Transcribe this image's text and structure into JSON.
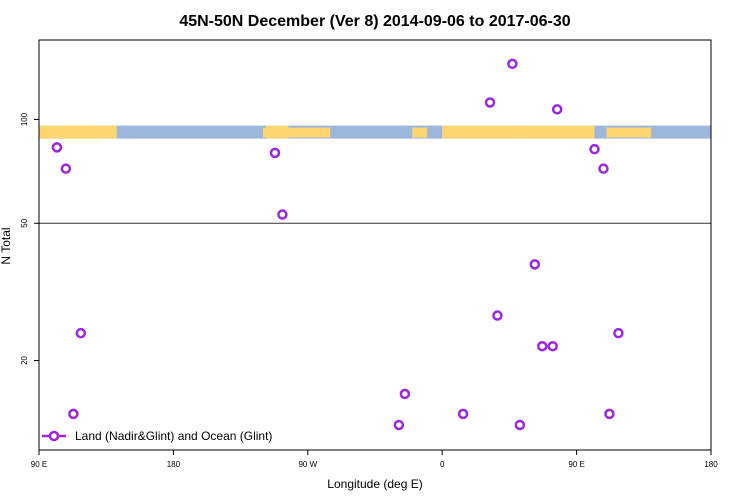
{
  "chart_data": {
    "type": "scatter",
    "title": "45N-50N December (Ver 8)   2014-09-06 to 2017-06-30",
    "xlabel": "Longitude (deg E)",
    "ylabel": "N Total",
    "x_ticks": [
      {
        "value": 90,
        "label": "90 E"
      },
      {
        "value": 180,
        "label": "180"
      },
      {
        "value": 270,
        "label": "90 W"
      },
      {
        "value": 360,
        "label": "0"
      },
      {
        "value": 450,
        "label": "90 E"
      },
      {
        "value": 540,
        "label": "180"
      }
    ],
    "y_ticks": [
      {
        "value": 20,
        "label": "20"
      },
      {
        "value": 50,
        "label": "50"
      },
      {
        "value": 100,
        "label": "100"
      }
    ],
    "xlim": [
      90,
      540
    ],
    "ylim": [
      11,
      170
    ],
    "y_scale": "log",
    "reference_line_y": 50,
    "land_ocean_strip": {
      "y_range": [
        88,
        96
      ],
      "land_color": "#fcd671",
      "ocean_color": "#9db6dc"
    },
    "series": [
      {
        "name": "Land (Nadir&Glint) and Ocean (Glint)",
        "color": "#9b26e6",
        "points": [
          {
            "x": 102,
            "y": 83
          },
          {
            "x": 108,
            "y": 72
          },
          {
            "x": 113,
            "y": 14
          },
          {
            "x": 118,
            "y": 24
          },
          {
            "x": 248,
            "y": 80
          },
          {
            "x": 253,
            "y": 53
          },
          {
            "x": 331,
            "y": 13
          },
          {
            "x": 335,
            "y": 16
          },
          {
            "x": 374,
            "y": 14
          },
          {
            "x": 392,
            "y": 112
          },
          {
            "x": 397,
            "y": 27
          },
          {
            "x": 407,
            "y": 145
          },
          {
            "x": 412,
            "y": 13
          },
          {
            "x": 422,
            "y": 38
          },
          {
            "x": 427,
            "y": 22
          },
          {
            "x": 434,
            "y": 22
          },
          {
            "x": 437,
            "y": 107
          },
          {
            "x": 462,
            "y": 82
          },
          {
            "x": 468,
            "y": 72
          },
          {
            "x": 472,
            "y": 14
          },
          {
            "x": 478,
            "y": 24
          }
        ]
      }
    ],
    "legend": {
      "position": "bottom-left"
    },
    "grid": false
  }
}
